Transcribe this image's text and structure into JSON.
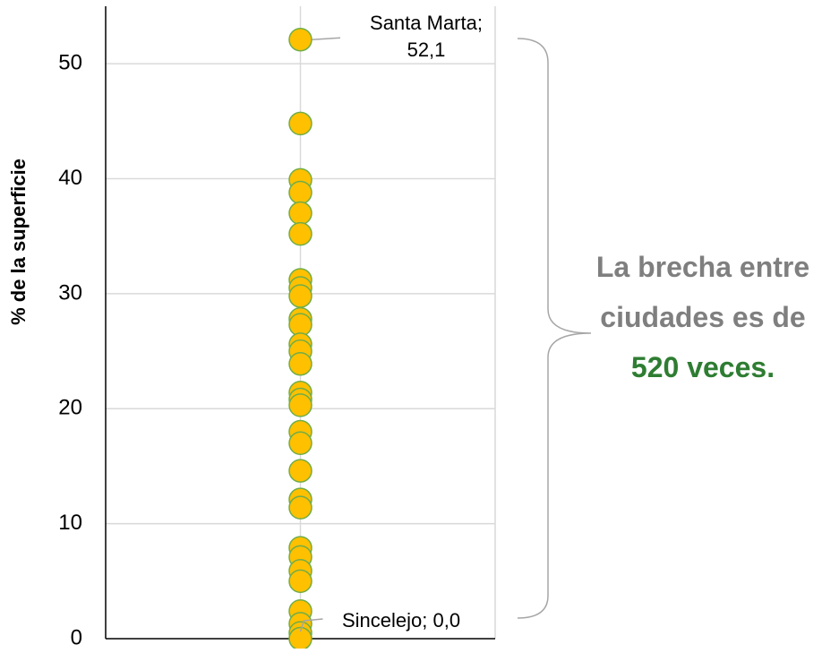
{
  "chart_data": {
    "type": "scatter",
    "y_label": "% de la superficie",
    "x": [
      1,
      1,
      1,
      1,
      1,
      1,
      1,
      1,
      1,
      1,
      1,
      1,
      1,
      1,
      1,
      1,
      1,
      1,
      1,
      1,
      1,
      1,
      1,
      1,
      1,
      1,
      1,
      1,
      1,
      1
    ],
    "values": [
      52.1,
      44.8,
      39.9,
      38.8,
      37.0,
      35.2,
      31.2,
      30.5,
      29.8,
      27.8,
      27.3,
      25.6,
      25.0,
      23.9,
      21.4,
      20.8,
      20.3,
      18.0,
      17.0,
      14.6,
      12.1,
      11.4,
      7.9,
      7.1,
      5.9,
      5.0,
      2.4,
      1.3,
      0.5,
      0.0
    ],
    "value_labels": [
      "Santa Marta; 52,1",
      null,
      null,
      null,
      null,
      null,
      null,
      null,
      null,
      null,
      null,
      null,
      null,
      null,
      null,
      null,
      null,
      null,
      null,
      null,
      null,
      null,
      null,
      null,
      null,
      null,
      null,
      null,
      null,
      "Sincelejo; 0,0"
    ],
    "color": "#ffc000",
    "edge_color": "#70ad47",
    "xlim": [
      0,
      2
    ],
    "ylim": [
      0,
      55
    ],
    "yticks": [
      0,
      10,
      20,
      30,
      40,
      50
    ],
    "grid": true,
    "annotation": [
      "La brecha entre ciudades es de",
      "520 veces."
    ]
  }
}
